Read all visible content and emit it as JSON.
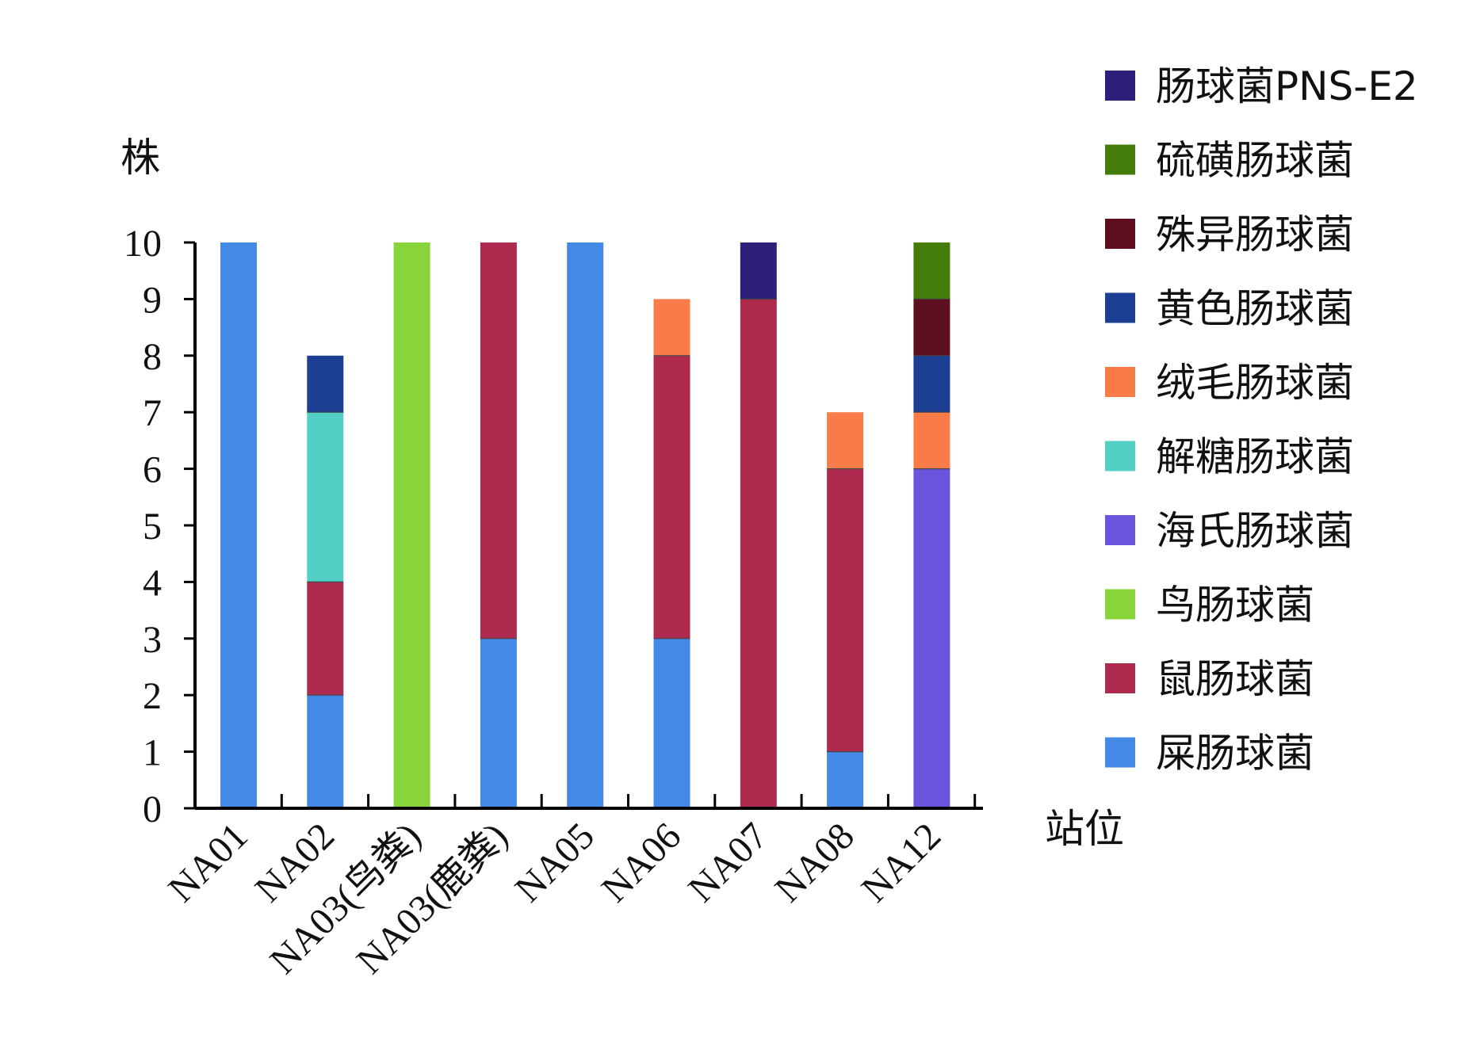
{
  "chart_data": {
    "type": "bar",
    "stacked": true,
    "title": "",
    "xlabel": "站位",
    "ylabel": "株",
    "ylim": [
      0,
      10
    ],
    "yticks": [
      "0",
      "1",
      "2",
      "3",
      "4",
      "5",
      "6",
      "7",
      "8",
      "9",
      "10"
    ],
    "categories": [
      "NA01",
      "NA02",
      "NA03(鸟粪)",
      "NA03(鹿粪)",
      "NA05",
      "NA06",
      "NA07",
      "NA08",
      "NA12"
    ],
    "legend_position": "right",
    "grid": false,
    "series": [
      {
        "name": "屎肠球菌",
        "color": "#4389E5",
        "values": [
          10,
          2,
          0,
          3,
          10,
          3,
          0,
          1,
          0
        ]
      },
      {
        "name": "鼠肠球菌",
        "color": "#AE2B4F",
        "values": [
          0,
          2,
          0,
          7,
          0,
          5,
          9,
          5,
          0
        ]
      },
      {
        "name": "鸟肠球菌",
        "color": "#88D43B",
        "values": [
          0,
          0,
          10,
          0,
          0,
          0,
          0,
          0,
          0
        ]
      },
      {
        "name": "海氏肠球菌",
        "color": "#6A55DC",
        "values": [
          0,
          0,
          0,
          0,
          0,
          0,
          0,
          0,
          6
        ]
      },
      {
        "name": "解糖肠球菌",
        "color": "#53D0C6",
        "values": [
          0,
          3,
          0,
          0,
          0,
          0,
          0,
          0,
          0
        ]
      },
      {
        "name": "绒毛肠球菌",
        "color": "#F97B47",
        "values": [
          0,
          0,
          0,
          0,
          0,
          1,
          0,
          1,
          1
        ]
      },
      {
        "name": "黄色肠球菌",
        "color": "#1C3F93",
        "values": [
          0,
          1,
          0,
          0,
          0,
          0,
          0,
          0,
          1
        ]
      },
      {
        "name": "殊异肠球菌",
        "color": "#5E0F1F",
        "values": [
          0,
          0,
          0,
          0,
          0,
          0,
          0,
          0,
          1
        ]
      },
      {
        "name": "硫磺肠球菌",
        "color": "#447D0A",
        "values": [
          0,
          0,
          0,
          0,
          0,
          0,
          0,
          0,
          1
        ]
      },
      {
        "name": "肠球菌PNS-E2",
        "color": "#2D1F7A",
        "values": [
          0,
          0,
          0,
          0,
          0,
          0,
          1,
          0,
          0
        ]
      }
    ]
  }
}
